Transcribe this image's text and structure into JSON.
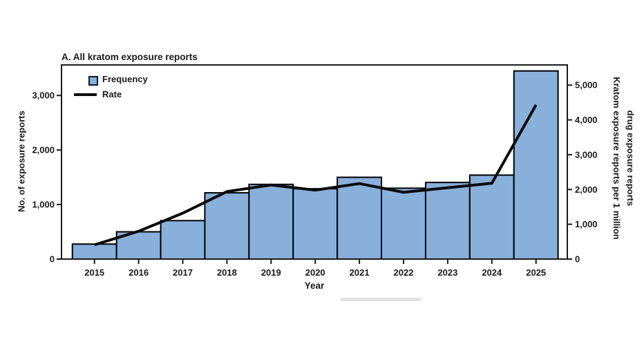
{
  "chart_data": {
    "type": "bar",
    "combo": "bar+line",
    "title": "A. All kratom exposure reports",
    "xlabel": "Year",
    "ylabel_left": "No. of exposure reports",
    "ylabel_right": "Kratom exposure reports per 1 million drug exposure reports",
    "ylabel_right_lines": [
      "Kratom exposure reports per 1 million",
      "drug exposure reports"
    ],
    "categories": [
      "2015",
      "2016",
      "2017",
      "2018",
      "2019",
      "2020",
      "2021",
      "2022",
      "2023",
      "2024",
      "2025"
    ],
    "series": [
      {
        "name": "Frequency",
        "type": "bar",
        "axis": "left",
        "values": [
          275,
          500,
          705,
          1215,
          1370,
          1290,
          1500,
          1300,
          1405,
          1540,
          3450
        ]
      },
      {
        "name": "Rate",
        "type": "line",
        "axis": "right",
        "values": [
          410,
          800,
          1320,
          1940,
          2130,
          1980,
          2170,
          1920,
          2050,
          2180,
          4430
        ]
      }
    ],
    "left_axis": {
      "ticks": [
        0,
        1000,
        2000,
        3000
      ],
      "tick_labels": [
        "0",
        "1,000",
        "2,000",
        "3,000"
      ],
      "max": 3560
    },
    "right_axis": {
      "ticks": [
        0,
        1000,
        2000,
        3000,
        4000,
        5000
      ],
      "tick_labels": [
        "0",
        "1,000",
        "2,000",
        "3,000",
        "4,000",
        "5,000"
      ],
      "max": 5580
    },
    "legend": {
      "position": "top-left-inside"
    },
    "grid": false,
    "colors": {
      "bar_fill": "#89AFDB",
      "bar_stroke": "#000000",
      "line": "#0b0b0b",
      "axis": "#1a1a1a",
      "text": "#1a1a1a",
      "legend_swatch_border": "#101828",
      "background": "#ffffff"
    }
  }
}
